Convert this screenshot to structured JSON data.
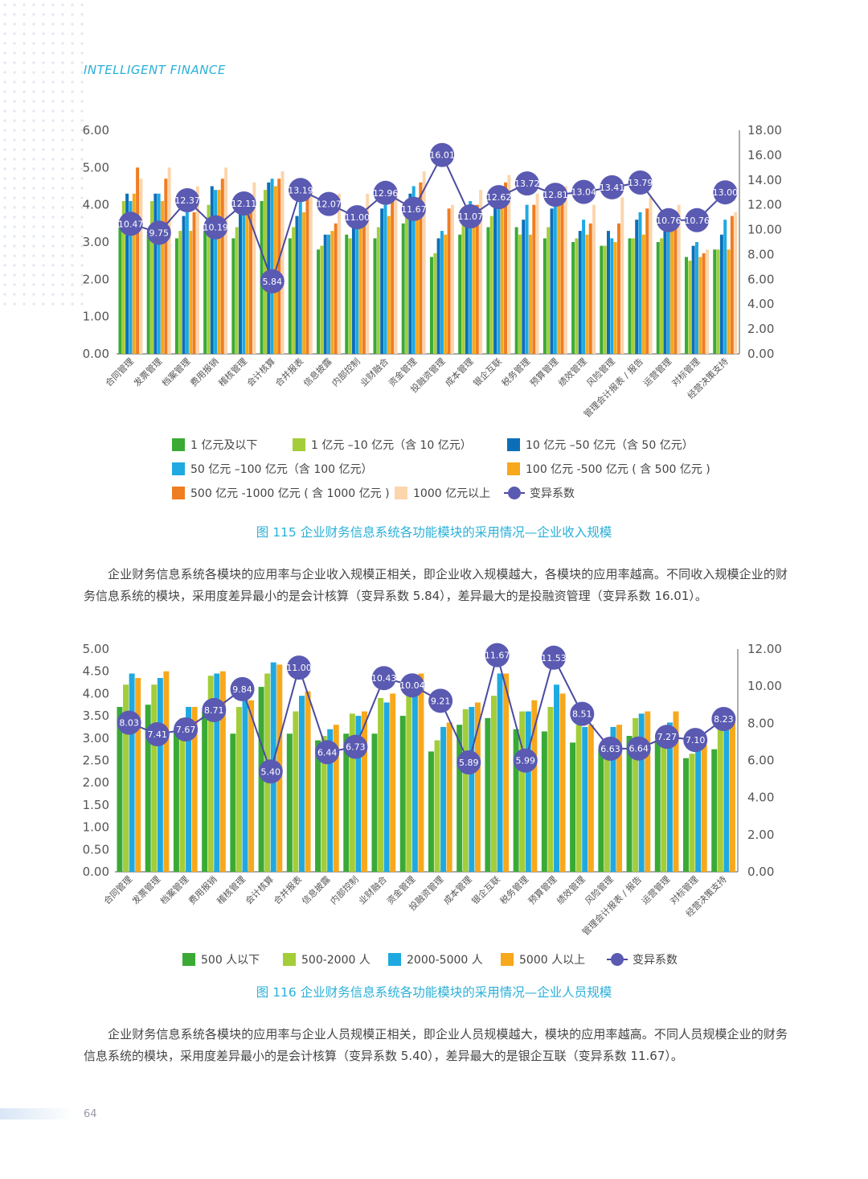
{
  "header": {
    "title": "INTELLIGENT FINANCE"
  },
  "colors": {
    "accent": "#2ab0d8",
    "marker": "#5a5ab2"
  },
  "figure115": {
    "caption": "图 115  企业财务信息系统各功能模块的采用情况—企业收入规模",
    "legend": [
      {
        "label": "1 亿元及以下",
        "color": "#3aaa35"
      },
      {
        "label": "1 亿元 –10 亿元（含 10 亿元）",
        "color": "#a3cd39"
      },
      {
        "label": "10 亿元 –50 亿元（含 50 亿元）",
        "color": "#0b6fb8"
      },
      {
        "label": "50 亿元 –100 亿元（含 100 亿元）",
        "color": "#1fa9e1"
      },
      {
        "label": "100 亿元 -500 亿元 ( 含 500 亿元 )",
        "color": "#f7a81b"
      },
      {
        "label": "500 亿元 -1000 亿元 ( 含 1000 亿元 )",
        "color": "#ef7d22"
      },
      {
        "label": "1000 亿元以上",
        "color": "#fcd5ac"
      },
      {
        "label": "变异系数",
        "color": "#5a5ab2"
      }
    ]
  },
  "paragraph1": "企业财务信息系统各模块的应用率与企业收入规模正相关，即企业收入规模越大，各模块的应用率越高。不同收入规模企业的财务信息系统的模块，采用度差异最小的是会计核算（变异系数 5.84），差异最大的是投融资管理（变异系数 16.01）。",
  "figure116": {
    "caption": "图 116  企业财务信息系统各功能模块的采用情况—企业人员规模",
    "legend": [
      {
        "label": "500 人以下",
        "color": "#3aaa35"
      },
      {
        "label": "500-2000 人",
        "color": "#a3cd39"
      },
      {
        "label": "2000-5000 人",
        "color": "#1fa9e1"
      },
      {
        "label": "5000 人以上",
        "color": "#f7a81b"
      },
      {
        "label": "变异系数",
        "color": "#5a5ab2"
      }
    ]
  },
  "paragraph2": "企业财务信息系统各模块的应用率与企业人员规模正相关，即企业人员规模越大，模块的应用率越高。不同人员规模企业的财务信息系统的模块，采用度差异最小的是会计核算（变异系数 5.40），差异最大的是银企互联（变异系数 11.67）。",
  "footer": {
    "page_number": "64"
  },
  "chart_data": [
    {
      "type": "bar",
      "categories": [
        "合同管理",
        "发票管理",
        "档案管理",
        "费用报销",
        "稽核管理",
        "会计核算",
        "合并报表",
        "信息披露",
        "内部控制",
        "业财融合",
        "资金管理",
        "投融资管理",
        "成本管理",
        "银企互联",
        "税务管理",
        "预算管理",
        "绩效管理",
        "风险管理",
        "管理会计报表 / 报告",
        "运营管理",
        "对标管理",
        "经营决策支持"
      ],
      "series": [
        {
          "name": "1 亿元及以下",
          "values": [
            3.4,
            3.2,
            3.1,
            3.3,
            3.1,
            4.1,
            3.1,
            2.8,
            3.2,
            3.1,
            3.5,
            2.6,
            3.2,
            3.4,
            3.4,
            3.1,
            3.0,
            2.9,
            3.1,
            3.0,
            2.6,
            2.8
          ]
        },
        {
          "name": "1 亿元 –10 亿元（含 10 亿元）",
          "values": [
            4.1,
            4.1,
            3.3,
            4.0,
            3.4,
            4.4,
            3.4,
            2.9,
            3.1,
            3.4,
            3.7,
            2.7,
            3.6,
            3.7,
            3.2,
            3.4,
            3.1,
            2.9,
            3.1,
            3.1,
            2.5,
            2.8
          ]
        },
        {
          "name": "10 亿元 –50 亿元（含 50 亿元）",
          "values": [
            4.3,
            4.3,
            3.7,
            4.5,
            4.2,
            4.6,
            3.7,
            3.2,
            3.6,
            3.9,
            4.3,
            3.1,
            3.9,
            4.3,
            3.6,
            3.9,
            3.3,
            3.3,
            3.6,
            3.3,
            2.9,
            3.2
          ]
        },
        {
          "name": "50 亿元 –100 亿元（含 100 亿元）",
          "values": [
            4.1,
            4.3,
            3.8,
            4.4,
            3.8,
            4.7,
            4.1,
            3.2,
            3.9,
            4.0,
            4.5,
            3.3,
            4.1,
            4.4,
            4.0,
            4.3,
            3.6,
            3.1,
            3.8,
            3.4,
            3.0,
            3.6
          ]
        },
        {
          "name": "100 亿元 -500 亿元 ( 含 500 亿元 )",
          "values": [
            4.3,
            4.1,
            3.3,
            4.4,
            3.8,
            4.5,
            3.8,
            3.3,
            3.6,
            3.7,
            4.2,
            3.2,
            3.9,
            4.3,
            3.2,
            4.0,
            3.2,
            3.0,
            3.2,
            3.6,
            2.6,
            2.8
          ]
        },
        {
          "name": "500 亿元 -1000 亿元 ( 含 1000 亿元 )",
          "values": [
            5.0,
            4.7,
            3.8,
            4.7,
            4.2,
            4.7,
            4.3,
            3.5,
            3.8,
            4.2,
            4.6,
            3.9,
            4.0,
            4.6,
            4.0,
            4.1,
            3.5,
            3.5,
            3.9,
            3.8,
            2.7,
            3.7
          ]
        },
        {
          "name": "1000 亿元以上",
          "values": [
            4.7,
            5.0,
            4.5,
            5.0,
            4.6,
            4.9,
            4.4,
            4.3,
            4.3,
            4.4,
            4.9,
            4.0,
            4.4,
            4.8,
            4.3,
            4.5,
            4.0,
            4.2,
            4.2,
            4.0,
            2.8,
            3.8
          ]
        }
      ],
      "line": {
        "name": "变异系数",
        "values": [
          10.47,
          9.75,
          12.37,
          10.19,
          12.11,
          5.84,
          13.19,
          12.07,
          11.0,
          12.96,
          11.67,
          16.01,
          11.07,
          12.62,
          13.72,
          12.81,
          13.04,
          13.41,
          13.79,
          10.76,
          10.76,
          13.0
        ],
        "labels": [
          "10.47",
          "9.75",
          "12.37",
          "10.19",
          "12.11",
          "5.84",
          "13.19",
          "12.07",
          "11.00",
          "12.96",
          "11.67",
          "16.01",
          "11.07",
          "12.62",
          "13.72",
          "12.81",
          "13.04",
          "13.41",
          "13.79",
          "10.76",
          "10.76",
          "13.00"
        ]
      },
      "yticks": [
        "0.00",
        "1.00",
        "2.00",
        "3.00",
        "4.00",
        "5.00",
        "6.00"
      ],
      "y2ticks": [
        "0.00",
        "2.00",
        "4.00",
        "6.00",
        "8.00",
        "10.00",
        "12.00",
        "14.00",
        "16.00",
        "18.00"
      ],
      "ylim": [
        0,
        6
      ],
      "y2lim": [
        0,
        18
      ]
    },
    {
      "type": "bar",
      "categories": [
        "合同管理",
        "发票管理",
        "档案管理",
        "费用报销",
        "稽核管理",
        "会计核算",
        "合并报表",
        "信息披露",
        "内部控制",
        "业财融合",
        "资金管理",
        "投融资管理",
        "成本管理",
        "银企互联",
        "税务管理",
        "预算管理",
        "绩效管理",
        "风险管理",
        "管理会计报表 / 报告",
        "运营管理",
        "对标管理",
        "经营决策支持"
      ],
      "series": [
        {
          "name": "500 人以下",
          "values": [
            3.7,
            3.75,
            3.2,
            3.6,
            3.1,
            4.15,
            3.1,
            2.95,
            3.1,
            3.1,
            3.5,
            2.7,
            3.3,
            3.45,
            3.2,
            3.15,
            2.9,
            2.75,
            3.05,
            2.95,
            2.55,
            2.75
          ]
        },
        {
          "name": "500-2000 人",
          "values": [
            4.2,
            4.2,
            3.45,
            4.4,
            3.7,
            4.45,
            3.6,
            3.05,
            3.55,
            3.9,
            4.15,
            2.95,
            3.65,
            3.95,
            3.6,
            3.7,
            3.3,
            2.95,
            3.45,
            3.25,
            2.65,
            3.2
          ]
        },
        {
          "name": "2000-5000 人",
          "values": [
            4.45,
            4.35,
            3.7,
            4.45,
            3.9,
            4.7,
            3.95,
            3.2,
            3.5,
            3.8,
            4.3,
            3.25,
            3.7,
            4.45,
            3.6,
            4.2,
            3.25,
            3.25,
            3.55,
            3.35,
            2.85,
            3.3
          ]
        },
        {
          "name": "5000 人以上",
          "values": [
            4.35,
            4.5,
            3.7,
            4.5,
            3.85,
            4.65,
            4.05,
            3.3,
            3.6,
            4.0,
            4.45,
            3.35,
            3.8,
            4.45,
            3.85,
            4.0,
            3.3,
            3.3,
            3.6,
            3.6,
            2.85,
            3.4
          ]
        }
      ],
      "line": {
        "name": "变异系数",
        "values": [
          8.03,
          7.41,
          7.67,
          8.71,
          9.84,
          5.4,
          11.0,
          6.44,
          6.73,
          10.43,
          10.04,
          9.21,
          5.89,
          11.67,
          5.99,
          11.53,
          8.51,
          6.63,
          6.64,
          7.27,
          7.1,
          8.23
        ],
        "labels": [
          "8.03",
          "7.41",
          "7.67",
          "8.71",
          "9.84",
          "5.40",
          "11.00",
          "6.44",
          "6.73",
          "10.43",
          "10.04",
          "9.21",
          "5.89",
          "11.67",
          "5.99",
          "11.53",
          "8.51",
          "6.63",
          "6.64",
          "7.27",
          "7.10",
          "8.23"
        ]
      },
      "yticks": [
        "0.00",
        "0.50",
        "1.00",
        "1.50",
        "2.00",
        "2.50",
        "3.00",
        "3.50",
        "4.00",
        "4.50",
        "5.00"
      ],
      "y2ticks": [
        "0.00",
        "2.00",
        "4.00",
        "6.00",
        "8.00",
        "10.00",
        "12.00"
      ],
      "ylim": [
        0,
        5
      ],
      "y2lim": [
        0,
        12
      ]
    }
  ]
}
